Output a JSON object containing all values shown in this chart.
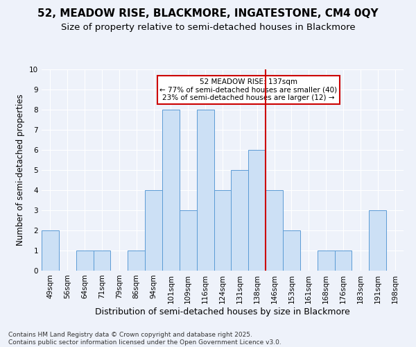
{
  "title1": "52, MEADOW RISE, BLACKMORE, INGATESTONE, CM4 0QY",
  "title2": "Size of property relative to semi-detached houses in Blackmore",
  "xlabel": "Distribution of semi-detached houses by size in Blackmore",
  "ylabel": "Number of semi-detached properties",
  "categories": [
    "49sqm",
    "56sqm",
    "64sqm",
    "71sqm",
    "79sqm",
    "86sqm",
    "94sqm",
    "101sqm",
    "109sqm",
    "116sqm",
    "124sqm",
    "131sqm",
    "138sqm",
    "146sqm",
    "153sqm",
    "161sqm",
    "168sqm",
    "176sqm",
    "183sqm",
    "191sqm",
    "198sqm"
  ],
  "values": [
    2,
    0,
    1,
    1,
    0,
    1,
    4,
    8,
    3,
    8,
    4,
    5,
    6,
    4,
    2,
    0,
    1,
    1,
    0,
    3,
    0
  ],
  "bar_color": "#cce0f5",
  "bar_edge_color": "#5b9bd5",
  "bar_width": 1.0,
  "ylim": [
    0,
    10
  ],
  "yticks": [
    0,
    1,
    2,
    3,
    4,
    5,
    6,
    7,
    8,
    9,
    10
  ],
  "vline_color": "#cc0000",
  "annotation_text": "52 MEADOW RISE: 137sqm\n← 77% of semi-detached houses are smaller (40)\n23% of semi-detached houses are larger (12) →",
  "annotation_box_color": "#cc0000",
  "footnote": "Contains HM Land Registry data © Crown copyright and database right 2025.\nContains public sector information licensed under the Open Government Licence v3.0.",
  "background_color": "#eef2fa",
  "plot_bg_color": "#eef2fa",
  "grid_color": "#ffffff",
  "title1_fontsize": 11,
  "title2_fontsize": 9.5,
  "xlabel_fontsize": 9,
  "ylabel_fontsize": 8.5,
  "tick_fontsize": 7.5,
  "footnote_fontsize": 6.5
}
